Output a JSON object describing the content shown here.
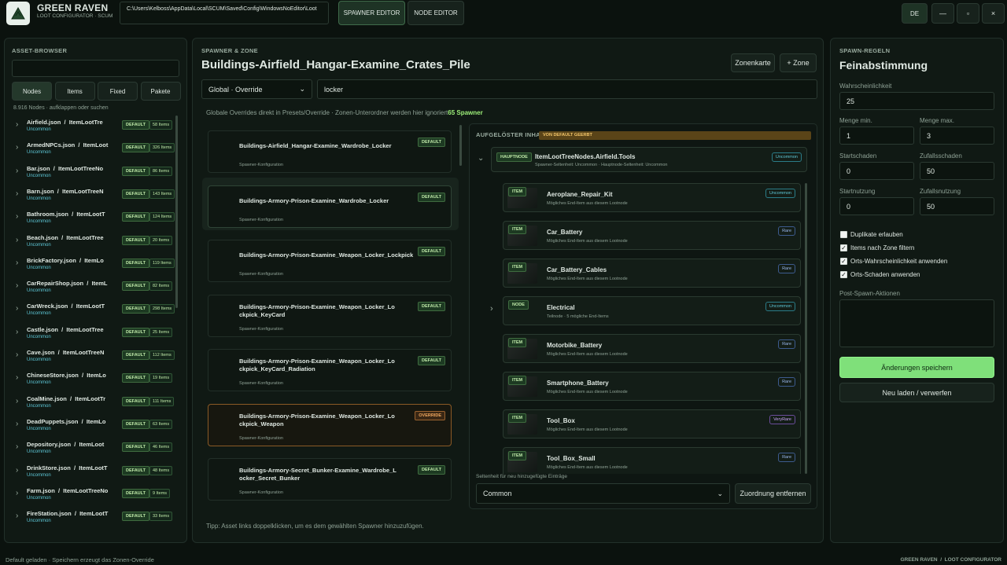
{
  "header": {
    "app_title": "GREEN RAVEN",
    "app_subtitle": "LOOT CONFIGURATOR · SCUM",
    "path": "C:\\Users\\Kelboss\\AppData\\Local\\SCUM\\Saved\\Config\\WindowsNoEditor\\Loot",
    "tabs": [
      "SPAWNER EDITOR",
      "NODE EDITOR"
    ],
    "active_tab": 0,
    "language": "DE",
    "window_buttons": [
      "—",
      "▫",
      "×"
    ]
  },
  "asset_browser": {
    "title": "ASSET-BROWSER",
    "tabs": [
      "Nodes",
      "Items",
      "Fixed",
      "Pakete"
    ],
    "active_tab": 0,
    "count_text": "8.916 Nodes · aufklappen oder suchen",
    "items": [
      {
        "label": "Airfield.json  /  ItemLootTre",
        "rarity": "Uncommon",
        "badge": "DEFAULT",
        "count": "58 Items"
      },
      {
        "label": "ArmedNPCs.json  /  ItemLoot",
        "rarity": "Uncommon",
        "badge": "DEFAULT",
        "count": "326 Items"
      },
      {
        "label": "Bar.json  /  ItemLootTreeNo",
        "rarity": "Uncommon",
        "badge": "DEFAULT",
        "count": "86 Items"
      },
      {
        "label": "Barn.json  /  ItemLootTreeN",
        "rarity": "Uncommon",
        "badge": "DEFAULT",
        "count": "143 Items"
      },
      {
        "label": "Bathroom.json  /  ItemLootT",
        "rarity": "Uncommon",
        "badge": "DEFAULT",
        "count": "124 Items"
      },
      {
        "label": "Beach.json  /  ItemLootTree",
        "rarity": "Uncommon",
        "badge": "DEFAULT",
        "count": "20 Items"
      },
      {
        "label": "BrickFactory.json  /  ItemLo",
        "rarity": "Uncommon",
        "badge": "DEFAULT",
        "count": "119 Items"
      },
      {
        "label": "CarRepairShop.json  /  ItemL",
        "rarity": "Uncommon",
        "badge": "DEFAULT",
        "count": "82 Items"
      },
      {
        "label": "CarWreck.json  /  ItemLootT",
        "rarity": "Uncommon",
        "badge": "DEFAULT",
        "count": "298 Items"
      },
      {
        "label": "Castle.json  /  ItemLootTree",
        "rarity": "Uncommon",
        "badge": "DEFAULT",
        "count": "25 Items"
      },
      {
        "label": "Cave.json  /  ItemLootTreeN",
        "rarity": "Uncommon",
        "badge": "DEFAULT",
        "count": "112 Items"
      },
      {
        "label": "ChineseStore.json  /  ItemLo",
        "rarity": "Uncommon",
        "badge": "DEFAULT",
        "count": "19 Items"
      },
      {
        "label": "CoalMine.json  /  ItemLootTr",
        "rarity": "Uncommon",
        "badge": "DEFAULT",
        "count": "111 Items"
      },
      {
        "label": "DeadPuppets.json  /  ItemLo",
        "rarity": "Uncommon",
        "badge": "DEFAULT",
        "count": "63 Items"
      },
      {
        "label": "Depository.json  /  ItemLoot",
        "rarity": "Uncommon",
        "badge": "DEFAULT",
        "count": "46 Items"
      },
      {
        "label": "DrinkStore.json  /  ItemLootT",
        "rarity": "Uncommon",
        "badge": "DEFAULT",
        "count": "48 Items"
      },
      {
        "label": "Farm.json  /  ItemLootTreeNo",
        "rarity": "Uncommon",
        "badge": "DEFAULT",
        "count": "9 Items"
      },
      {
        "label": "FireStation.json  /  ItemLootT",
        "rarity": "Uncommon",
        "badge": "DEFAULT",
        "count": "33 Items"
      }
    ]
  },
  "spawner": {
    "section_label": "SPAWNER & ZONE",
    "title": "Buildings-Airfield_Hangar-Examine_Crates_Pile",
    "buttons": [
      "Zonenkarte",
      "+ Zone"
    ],
    "zone_select": "Global · Override",
    "search": "locker",
    "info": "Globale Overrides direkt in Presets/Override · Zonen-Unterordner werden hier ignoriert",
    "count": "65 Spawner",
    "selected": 1,
    "cards": [
      {
        "name": "Buildings-Airfield_Hangar-Examine_Wardrobe_Locker",
        "subtitle": "Spawner-Konfiguration",
        "badge": "DEFAULT"
      },
      {
        "name": "Buildings-Armory-Prison-Examine_Wardrobe_Locker",
        "subtitle": "Spawner-Konfiguration",
        "badge": "DEFAULT"
      },
      {
        "name": "Buildings-Armory-Prison-Examine_Weapon_Locker_Lockpick",
        "subtitle": "Spawner-Konfiguration",
        "badge": "DEFAULT"
      },
      {
        "name": "Buildings-Armory-Prison-Examine_Weapon_Locker_Lockpick_KeyCard",
        "subtitle": "Spawner-Konfiguration",
        "badge": "DEFAULT"
      },
      {
        "name": "Buildings-Armory-Prison-Examine_Weapon_Locker_Lockpick_KeyCard_Radiation",
        "subtitle": "Spawner-Konfiguration",
        "badge": "DEFAULT"
      },
      {
        "name": "Buildings-Armory-Prison-Examine_Weapon_Locker_Lockpick_Weapon",
        "subtitle": "Spawner-Konfiguration",
        "badge": "OVERRIDE"
      },
      {
        "name": "Buildings-Armory-Secret_Bunker-Examine_Wardrobe_Locker_Secret_Bunker",
        "subtitle": "Spawner-Konfiguration",
        "badge": "DEFAULT"
      }
    ],
    "tip": "Tipp: Asset links doppelklicken, um es dem gewählten Spawner hinzuzufügen."
  },
  "resolved": {
    "title": "AUFGELÖSTER INHALT",
    "inherited_badge": "VON DEFAULT GEERBT",
    "root": {
      "type": "HAUPTNODE",
      "name": "ItemLootTreeNodes.Airfield.Tools",
      "subtitle": "Spawner-Seltenheit: Uncommon · Hauptnode-Seltenheit: Uncommon",
      "rarity": "Uncommon"
    },
    "children": [
      {
        "type": "ITEM",
        "name": "Aeroplane_Repair_Kit",
        "subtitle": "Mögliches End-Item aus diesem Lootnode",
        "rarity": "Uncommon"
      },
      {
        "type": "ITEM",
        "name": "Car_Battery",
        "subtitle": "Mögliches End-Item aus diesem Lootnode",
        "rarity": "Rare"
      },
      {
        "type": "ITEM",
        "name": "Car_Battery_Cables",
        "subtitle": "Mögliches End-Item aus diesem Lootnode",
        "rarity": "Rare"
      },
      {
        "type": "NODE",
        "name": "Electrical",
        "subtitle": "Teilnode · 5 mögliche End-Items",
        "rarity": "Uncommon"
      },
      {
        "type": "ITEM",
        "name": "Motorbike_Battery",
        "subtitle": "Mögliches End-Item aus diesem Lootnode",
        "rarity": "Rare"
      },
      {
        "type": "ITEM",
        "name": "Smartphone_Battery",
        "subtitle": "Mögliches End-Item aus diesem Lootnode",
        "rarity": "Rare"
      },
      {
        "type": "ITEM",
        "name": "Tool_Box",
        "subtitle": "Mögliches End-Item aus diesem Lootnode",
        "rarity": "VeryRare"
      },
      {
        "type": "ITEM",
        "name": "Tool_Box_Small",
        "subtitle": "Mögliches End-Item aus diesem Lootnode",
        "rarity": "Rare"
      }
    ],
    "new_rarity_label": "Seltenheit für neu hinzugefügte Einträge",
    "new_rarity": "Common",
    "remove_button": "Zuordnung entfernen"
  },
  "rules": {
    "section_label": "SPAWN-REGELN",
    "title": "Feinabstimmung",
    "fields": [
      {
        "label": "Wahrscheinlichkeit",
        "value": 25
      },
      {
        "label": "Menge min.",
        "value": 1
      },
      {
        "label": "Menge max.",
        "value": 3
      },
      {
        "label": "Startschaden",
        "value": 0
      },
      {
        "label": "Zufallsschaden",
        "value": 50
      },
      {
        "label": "Startnutzung",
        "value": 0
      },
      {
        "label": "Zufallsnutzung",
        "value": 50
      }
    ],
    "checkboxes": [
      {
        "label": "Duplikate erlauben",
        "checked": false
      },
      {
        "label": "Items nach Zone filtern",
        "checked": true
      },
      {
        "label": "Orts-Wahrscheinlichkeit anwenden",
        "checked": true
      },
      {
        "label": "Orts-Schaden anwenden",
        "checked": true
      }
    ],
    "post_spawn_label": "Post-Spawn-Aktionen",
    "save_button": "Änderungen speichern",
    "reload_button": "Neu laden / verwerfen"
  },
  "status": {
    "left": "Default geladen · Speichern erzeugt das Zonen-Override",
    "right": "GREEN RAVEN  /  LOOT CONFIGURATOR"
  }
}
